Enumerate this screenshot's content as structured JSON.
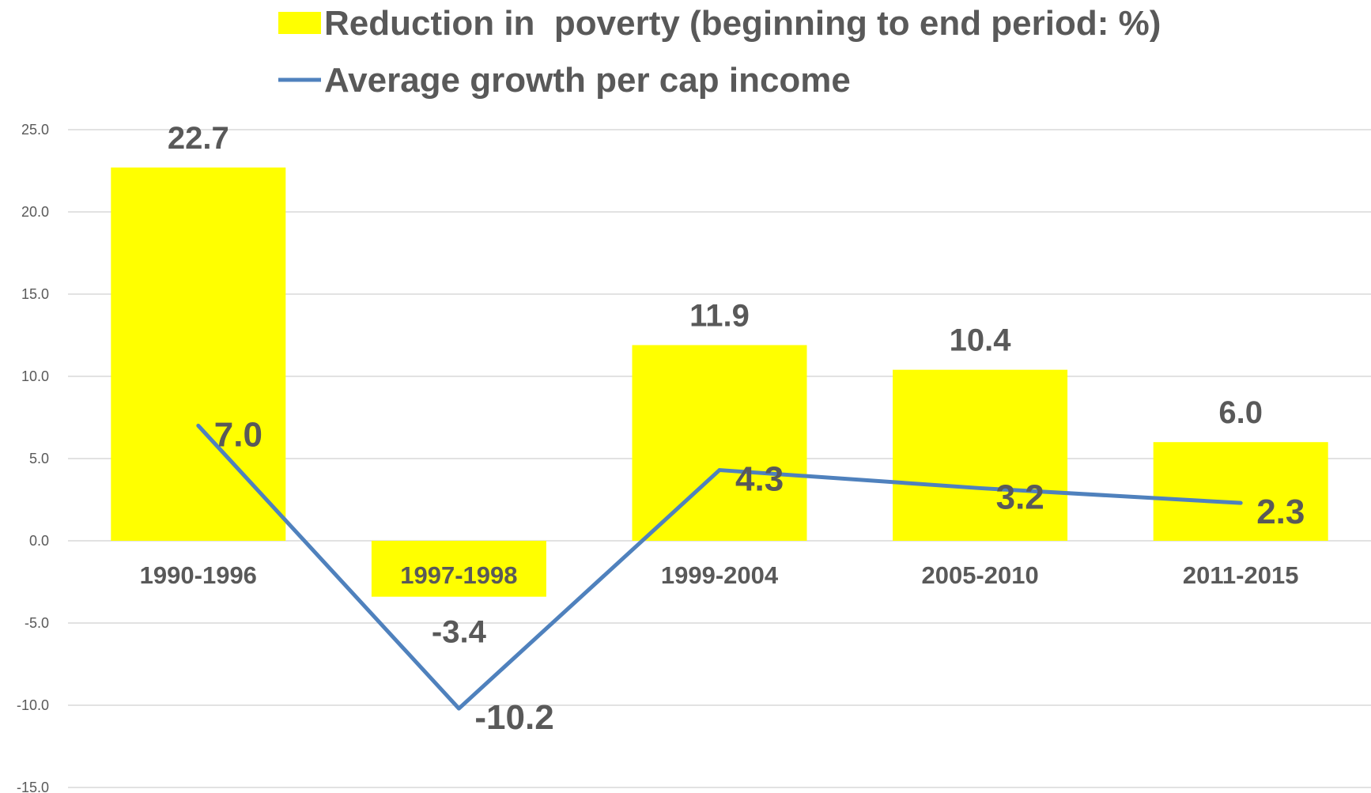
{
  "chart_data": {
    "type": "bar",
    "categories": [
      "1990-1996",
      "1997-1998",
      "1999-2004",
      "2005-2010",
      "2011-2015"
    ],
    "series": [
      {
        "name": "Reduction in  poverty (beginning to end period: %)",
        "type": "bar",
        "color": "#FFFF00",
        "values": [
          22.7,
          -3.4,
          11.9,
          10.4,
          6.0
        ],
        "labels": [
          "22.7",
          "-3.4",
          "11.9",
          "10.4",
          "6.0"
        ]
      },
      {
        "name": "Average growth per cap income",
        "type": "line",
        "color": "#4F81BD",
        "values": [
          7.0,
          -10.2,
          4.3,
          3.2,
          2.3
        ],
        "labels": [
          "7.0",
          "-10.2",
          "4.3",
          "3.2",
          "2.3"
        ]
      }
    ],
    "ylim": [
      -15,
      25
    ],
    "yticks": [
      25,
      20,
      15,
      10,
      5,
      0,
      -5,
      -10,
      -15
    ],
    "ytick_labels": [
      "25.0",
      "20.0",
      "15.0",
      "10.0",
      "5.0",
      "0.0",
      "-5.0",
      "-10.0",
      "-15.0"
    ],
    "grid": true,
    "legend": "top",
    "gridline_color": "#D9D9D9"
  }
}
